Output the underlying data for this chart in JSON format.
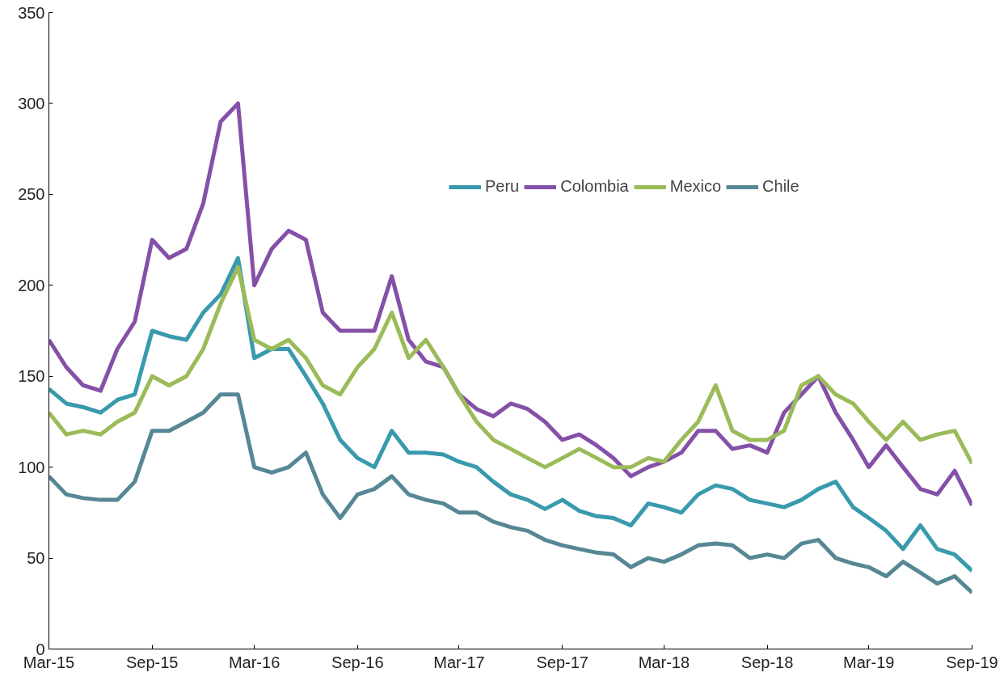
{
  "chart_data": {
    "type": "line",
    "x": [
      "2015-03",
      "2015-04",
      "2015-05",
      "2015-06",
      "2015-07",
      "2015-08",
      "2015-09",
      "2015-10",
      "2015-11",
      "2015-12",
      "2016-01",
      "2016-02",
      "2016-03",
      "2016-04",
      "2016-05",
      "2016-06",
      "2016-07",
      "2016-08",
      "2016-09",
      "2016-10",
      "2016-11",
      "2016-12",
      "2017-01",
      "2017-02",
      "2017-03",
      "2017-04",
      "2017-05",
      "2017-06",
      "2017-07",
      "2017-08",
      "2017-09",
      "2017-10",
      "2017-11",
      "2017-12",
      "2018-01",
      "2018-02",
      "2018-03",
      "2018-04",
      "2018-05",
      "2018-06",
      "2018-07",
      "2018-08",
      "2018-09",
      "2018-10",
      "2018-11",
      "2018-12",
      "2019-01",
      "2019-02",
      "2019-03",
      "2019-04",
      "2019-05",
      "2019-06",
      "2019-07",
      "2019-08",
      "2019-09"
    ],
    "series": [
      {
        "name": "Peru",
        "color": "#3a9aad",
        "values": [
          143,
          135,
          133,
          130,
          137,
          140,
          175,
          172,
          170,
          185,
          195,
          215,
          160,
          165,
          165,
          150,
          135,
          115,
          105,
          100,
          120,
          108,
          108,
          107,
          103,
          100,
          92,
          85,
          82,
          77,
          82,
          76,
          73,
          72,
          68,
          80,
          78,
          75,
          85,
          90,
          88,
          82,
          80,
          78,
          82,
          88,
          92,
          78,
          72,
          65,
          55,
          68,
          55,
          52,
          43
        ]
      },
      {
        "name": "Colombia",
        "color": "#8550a8",
        "values": [
          170,
          155,
          145,
          142,
          165,
          180,
          225,
          215,
          220,
          245,
          290,
          300,
          200,
          220,
          230,
          225,
          185,
          175,
          175,
          175,
          205,
          170,
          158,
          155,
          140,
          132,
          128,
          135,
          132,
          125,
          115,
          118,
          112,
          105,
          95,
          100,
          103,
          108,
          120,
          120,
          110,
          112,
          108,
          130,
          140,
          150,
          130,
          115,
          100,
          112,
          100,
          88,
          85,
          98,
          79
        ]
      },
      {
        "name": "Mexico",
        "color": "#9bbb59",
        "values": [
          130,
          118,
          120,
          118,
          125,
          130,
          150,
          145,
          150,
          165,
          190,
          210,
          170,
          165,
          170,
          160,
          145,
          140,
          155,
          165,
          185,
          160,
          170,
          155,
          140,
          125,
          115,
          110,
          105,
          100,
          105,
          110,
          105,
          100,
          100,
          105,
          103,
          115,
          125,
          145,
          120,
          115,
          115,
          120,
          145,
          150,
          140,
          135,
          125,
          115,
          125,
          115,
          118,
          120,
          102
        ]
      },
      {
        "name": "Chile",
        "color": "#568795",
        "values": [
          95,
          85,
          83,
          82,
          82,
          92,
          120,
          120,
          125,
          130,
          140,
          140,
          100,
          97,
          100,
          108,
          85,
          72,
          85,
          88,
          95,
          85,
          82,
          80,
          75,
          75,
          70,
          67,
          65,
          60,
          57,
          55,
          53,
          52,
          45,
          50,
          48,
          52,
          57,
          58,
          57,
          50,
          52,
          50,
          58,
          60,
          50,
          47,
          45,
          40,
          48,
          42,
          36,
          40,
          31
        ]
      }
    ],
    "xlim": [
      "2015-03",
      "2019-09"
    ],
    "xticks": [
      {
        "value": "2015-03",
        "label": "Mar-15"
      },
      {
        "value": "2015-09",
        "label": "Sep-15"
      },
      {
        "value": "2016-03",
        "label": "Mar-16"
      },
      {
        "value": "2016-09",
        "label": "Sep-16"
      },
      {
        "value": "2017-03",
        "label": "Mar-17"
      },
      {
        "value": "2017-09",
        "label": "Sep-17"
      },
      {
        "value": "2018-03",
        "label": "Mar-18"
      },
      {
        "value": "2018-09",
        "label": "Sep-18"
      },
      {
        "value": "2019-03",
        "label": "Mar-19"
      },
      {
        "value": "2019-09",
        "label": "Sep-19"
      }
    ],
    "ylim": [
      0,
      350
    ],
    "yticks": [
      0,
      50,
      100,
      150,
      200,
      250,
      300,
      350
    ],
    "grid": false,
    "legend": "top right",
    "line_style": "solid",
    "marker": "none"
  }
}
